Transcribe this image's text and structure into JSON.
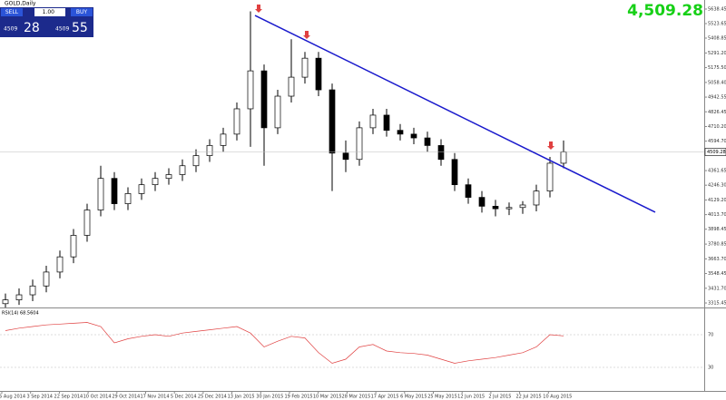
{
  "trade_panel": {
    "sell": "SELL",
    "lot": "1.00",
    "buy": "BUY",
    "bid_big": "4509",
    "bid_small": "28",
    "ask_big": "4509",
    "ask_small": "55"
  },
  "quote": "4,509.28",
  "chart_data": [
    {
      "type": "candlestick",
      "title": "GOLD,Daily",
      "open": [
        3310,
        3340,
        3380,
        3450,
        3560,
        3680,
        3850,
        4050,
        4300,
        4100,
        4180,
        4250,
        4300,
        4330,
        4400,
        4480,
        4560,
        4650,
        4850,
        5150,
        4700,
        4950,
        5100,
        5250,
        5000,
        4500,
        4450,
        4700,
        4800,
        4680,
        4650,
        4620,
        4560,
        4450,
        4250,
        4150,
        4080,
        4060,
        4070,
        4090,
        4200,
        4420
      ],
      "high": [
        3390,
        3430,
        3500,
        3610,
        3730,
        3900,
        4100,
        4400,
        4350,
        4230,
        4300,
        4350,
        4380,
        4450,
        4530,
        4610,
        4700,
        4900,
        5620,
        5200,
        5000,
        5400,
        5300,
        5300,
        5050,
        4600,
        4750,
        4850,
        4850,
        4730,
        4700,
        4670,
        4610,
        4500,
        4300,
        4200,
        4130,
        4110,
        4120,
        4250,
        4470,
        4600
      ],
      "low": [
        3280,
        3300,
        3330,
        3400,
        3510,
        3630,
        3800,
        4000,
        4050,
        4050,
        4130,
        4200,
        4250,
        4280,
        4350,
        4430,
        4510,
        4600,
        4550,
        4400,
        4650,
        4900,
        5050,
        4950,
        4200,
        4350,
        4400,
        4650,
        4630,
        4600,
        4570,
        4510,
        4400,
        4200,
        4100,
        4030,
        4000,
        4010,
        4020,
        4040,
        4150,
        4380
      ],
      "close": [
        3340,
        3380,
        3450,
        3560,
        3680,
        3850,
        4050,
        4300,
        4100,
        4180,
        4250,
        4300,
        4330,
        4400,
        4480,
        4560,
        4650,
        4850,
        5150,
        4700,
        4950,
        5100,
        5250,
        5000,
        4500,
        4450,
        4700,
        4800,
        4680,
        4650,
        4620,
        4560,
        4450,
        4250,
        4150,
        4080,
        4060,
        4070,
        4090,
        4200,
        4420,
        4509.28
      ],
      "ylim": [
        3287,
        5710
      ],
      "yticks": [
        5638.45,
        5523.65,
        5408.85,
        {
          "value": 5291.2,
          "label": "5291.20"
        },
        {
          "value": 5175.5,
          "label": "5175.50"
        },
        {
          "value": 5058.4,
          "label": "5058.40"
        },
        4942.55,
        4826.45,
        {
          "value": 4710.2,
          "label": "4710.20"
        },
        {
          "value": 4594.7,
          "label": "4594.70"
        },
        4361.65,
        {
          "value": 4246.3,
          "label": "4246.30"
        },
        {
          "value": 4129.2,
          "label": "4129.20"
        },
        {
          "value": 4013.7,
          "label": "4013.70"
        },
        3898.45,
        3780.85,
        {
          "value": 3663.7,
          "label": "3663.70"
        },
        3548.45,
        {
          "value": 3431.7,
          "label": "3431.70"
        },
        3315.45
      ],
      "current_price": 4509.28,
      "trendline": {
        "start": 5588,
        "end": 4033,
        "color": "#1a1acc"
      },
      "date_labels": [
        "15 Aug 2014",
        "3 Sep 2014",
        "22 Sep 2014",
        "10 Oct 2014",
        "29 Oct 2014",
        "17 Nov 2014",
        "5 Dec 2014",
        "25 Dec 2014",
        "13 Jan 2015",
        "30 Jan 2015",
        "19 Feb 2015",
        "10 Mar 2015",
        "28 Mar 2015",
        "17 Apr 2015",
        "6 May 2015",
        "25 May 2015",
        "12 Jun 2015",
        "2 Jul 2015",
        "22 Jul 2015",
        "10 Aug 2015"
      ]
    },
    {
      "type": "line",
      "title": "RSI(14) 68.5604",
      "color": "#e04040",
      "values": [
        75,
        78,
        80,
        82,
        83,
        84,
        85,
        80,
        60,
        65,
        68,
        70,
        68,
        72,
        74,
        76,
        78,
        80,
        72,
        55,
        62,
        68,
        66,
        48,
        35,
        40,
        55,
        58,
        50,
        48,
        47,
        45,
        40,
        35,
        38,
        40,
        42,
        45,
        48,
        55,
        70,
        68.5604
      ],
      "ylim": [
        0,
        100
      ],
      "yticks": [
        70,
        30
      ]
    }
  ]
}
